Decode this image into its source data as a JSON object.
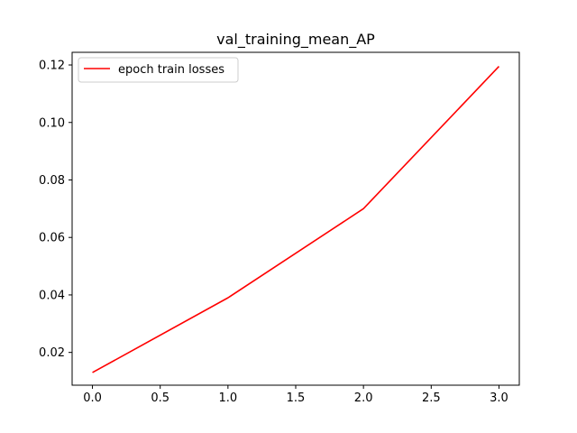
{
  "chart_data": {
    "type": "line",
    "title": "val_training_mean_AP",
    "xlabel": "",
    "ylabel": "",
    "xlim": [
      -0.15,
      3.15
    ],
    "ylim": [
      0.0086,
      0.1244
    ],
    "x_ticks": [
      0.0,
      0.5,
      1.0,
      1.5,
      2.0,
      2.5,
      3.0
    ],
    "x_tick_labels": [
      "0.0",
      "0.5",
      "1.0",
      "1.5",
      "2.0",
      "2.5",
      "3.0"
    ],
    "y_ticks": [
      0.02,
      0.04,
      0.06,
      0.08,
      0.1,
      0.12
    ],
    "y_tick_labels": [
      "0.02",
      "0.04",
      "0.06",
      "0.08",
      "0.10",
      "0.12"
    ],
    "grid": false,
    "legend_position": "upper-left",
    "series": [
      {
        "name": "epoch train losses",
        "color": "#ff0000",
        "x": [
          0,
          1,
          2,
          3
        ],
        "y": [
          0.013,
          0.039,
          0.07,
          0.1195
        ]
      }
    ]
  }
}
